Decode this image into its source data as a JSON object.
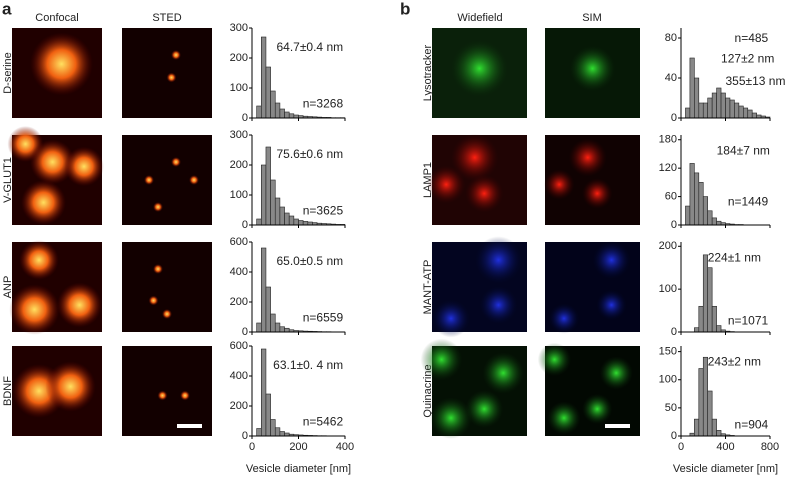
{
  "panel_a": {
    "label": "a",
    "column_headers": [
      "Confocal",
      "STED"
    ],
    "histogram_axis": {
      "xlim": [
        0,
        400
      ],
      "xticks": [
        0,
        200,
        400
      ],
      "xlabel": "Vesicle diameter [nm]"
    },
    "rows": [
      {
        "label": "D-serine",
        "histogram": {
          "ylim": [
            0,
            300
          ],
          "yticks": [
            0,
            100,
            200,
            300
          ],
          "annotations": [
            "64.7±0.4 nm",
            "n=3268"
          ],
          "bins": [
            0,
            20,
            40,
            60,
            80,
            100,
            120,
            140,
            160,
            180,
            200,
            220,
            240,
            260,
            280,
            300,
            320,
            340,
            360,
            380,
            400
          ],
          "counts": [
            0,
            40,
            270,
            170,
            90,
            50,
            30,
            20,
            14,
            10,
            8,
            6,
            5,
            4,
            3,
            2,
            2,
            1,
            1,
            1
          ]
        }
      },
      {
        "label": "V-GLUT1",
        "histogram": {
          "ylim": [
            0,
            300
          ],
          "yticks": [
            0,
            100,
            200,
            300
          ],
          "annotations": [
            "75.6±0.6 nm",
            "n=3625"
          ],
          "bins": [
            0,
            20,
            40,
            60,
            80,
            100,
            120,
            140,
            160,
            180,
            200,
            220,
            240,
            260,
            280,
            300,
            320,
            340,
            360,
            380,
            400
          ],
          "counts": [
            0,
            20,
            200,
            260,
            150,
            90,
            60,
            40,
            30,
            20,
            15,
            12,
            10,
            8,
            6,
            5,
            4,
            3,
            2,
            2
          ]
        }
      },
      {
        "label": "ANP",
        "histogram": {
          "ylim": [
            0,
            600
          ],
          "yticks": [
            0,
            200,
            400,
            600
          ],
          "annotations": [
            "65.0±0.5 nm",
            "n=6559"
          ],
          "bins": [
            0,
            20,
            40,
            60,
            80,
            100,
            120,
            140,
            160,
            180,
            200,
            220,
            240,
            260,
            280,
            300,
            320,
            340,
            360,
            380,
            400
          ],
          "counts": [
            0,
            60,
            560,
            300,
            120,
            60,
            35,
            25,
            15,
            10,
            8,
            6,
            5,
            4,
            3,
            2,
            2,
            1,
            1,
            1
          ]
        }
      },
      {
        "label": "BDNF",
        "histogram": {
          "ylim": [
            0,
            600
          ],
          "yticks": [
            0,
            200,
            400,
            600
          ],
          "annotations": [
            "63.1±0. 4 nm",
            "n=5462"
          ],
          "bins": [
            0,
            20,
            40,
            60,
            80,
            100,
            120,
            140,
            160,
            180,
            200,
            220,
            240,
            260,
            280,
            300,
            320,
            340,
            360,
            380,
            400
          ],
          "counts": [
            0,
            50,
            580,
            280,
            110,
            55,
            30,
            20,
            12,
            9,
            7,
            5,
            4,
            3,
            2,
            2,
            1,
            1,
            1,
            1
          ]
        }
      }
    ]
  },
  "panel_b": {
    "label": "b",
    "column_headers": [
      "Widefield",
      "SIM"
    ],
    "histogram_axis": {
      "xlim": [
        0,
        800
      ],
      "xticks": [
        0,
        400,
        800
      ],
      "xlabel": "Vesicle diameter [nm]"
    },
    "rows": [
      {
        "label": "Lysotracker",
        "histogram": {
          "ylim": [
            0,
            90
          ],
          "yticks": [
            0,
            40,
            80
          ],
          "annotations": [
            "n=485",
            "127±2 nm",
            "355±13 nm"
          ],
          "bins": [
            0,
            40,
            80,
            120,
            160,
            200,
            240,
            280,
            320,
            360,
            400,
            440,
            480,
            520,
            560,
            600,
            640,
            680,
            720,
            760,
            800
          ],
          "counts": [
            0,
            10,
            60,
            40,
            15,
            15,
            20,
            25,
            30,
            25,
            20,
            18,
            15,
            12,
            10,
            8,
            5,
            3,
            2,
            1
          ]
        }
      },
      {
        "label": "LAMP1",
        "histogram": {
          "ylim": [
            0,
            190
          ],
          "yticks": [
            0,
            60,
            120,
            180
          ],
          "annotations": [
            "184±7 nm",
            "n=1449"
          ],
          "bins": [
            0,
            40,
            80,
            120,
            160,
            200,
            240,
            280,
            320,
            360,
            400,
            440,
            480,
            520,
            560,
            600,
            640,
            680,
            720,
            760,
            800
          ],
          "counts": [
            0,
            40,
            130,
            110,
            90,
            60,
            30,
            15,
            8,
            5,
            3,
            2,
            1,
            1,
            0,
            0,
            0,
            0,
            0,
            0
          ]
        }
      },
      {
        "label": "MANT-ATP",
        "histogram": {
          "ylim": [
            0,
            210
          ],
          "yticks": [
            0,
            100,
            200
          ],
          "annotations": [
            "224±1 nm",
            "n=1071"
          ],
          "bins": [
            0,
            40,
            80,
            120,
            160,
            200,
            240,
            280,
            320,
            360,
            400,
            440,
            480,
            520,
            560,
            600,
            640,
            680,
            720,
            760,
            800
          ],
          "counts": [
            0,
            0,
            0,
            10,
            60,
            180,
            150,
            60,
            15,
            5,
            2,
            1,
            0,
            0,
            0,
            0,
            0,
            0,
            0,
            0
          ]
        }
      },
      {
        "label": "Quinacrine",
        "histogram": {
          "ylim": [
            0,
            160
          ],
          "yticks": [
            0,
            50,
            100,
            150
          ],
          "annotations": [
            "243±2 nm",
            "n=904"
          ],
          "bins": [
            0,
            40,
            80,
            120,
            160,
            200,
            240,
            280,
            320,
            360,
            400,
            440,
            480,
            520,
            560,
            600,
            640,
            680,
            720,
            760,
            800
          ],
          "counts": [
            0,
            0,
            5,
            30,
            120,
            140,
            80,
            30,
            10,
            4,
            2,
            1,
            0,
            0,
            0,
            0,
            0,
            0,
            0,
            0
          ]
        }
      }
    ]
  }
}
